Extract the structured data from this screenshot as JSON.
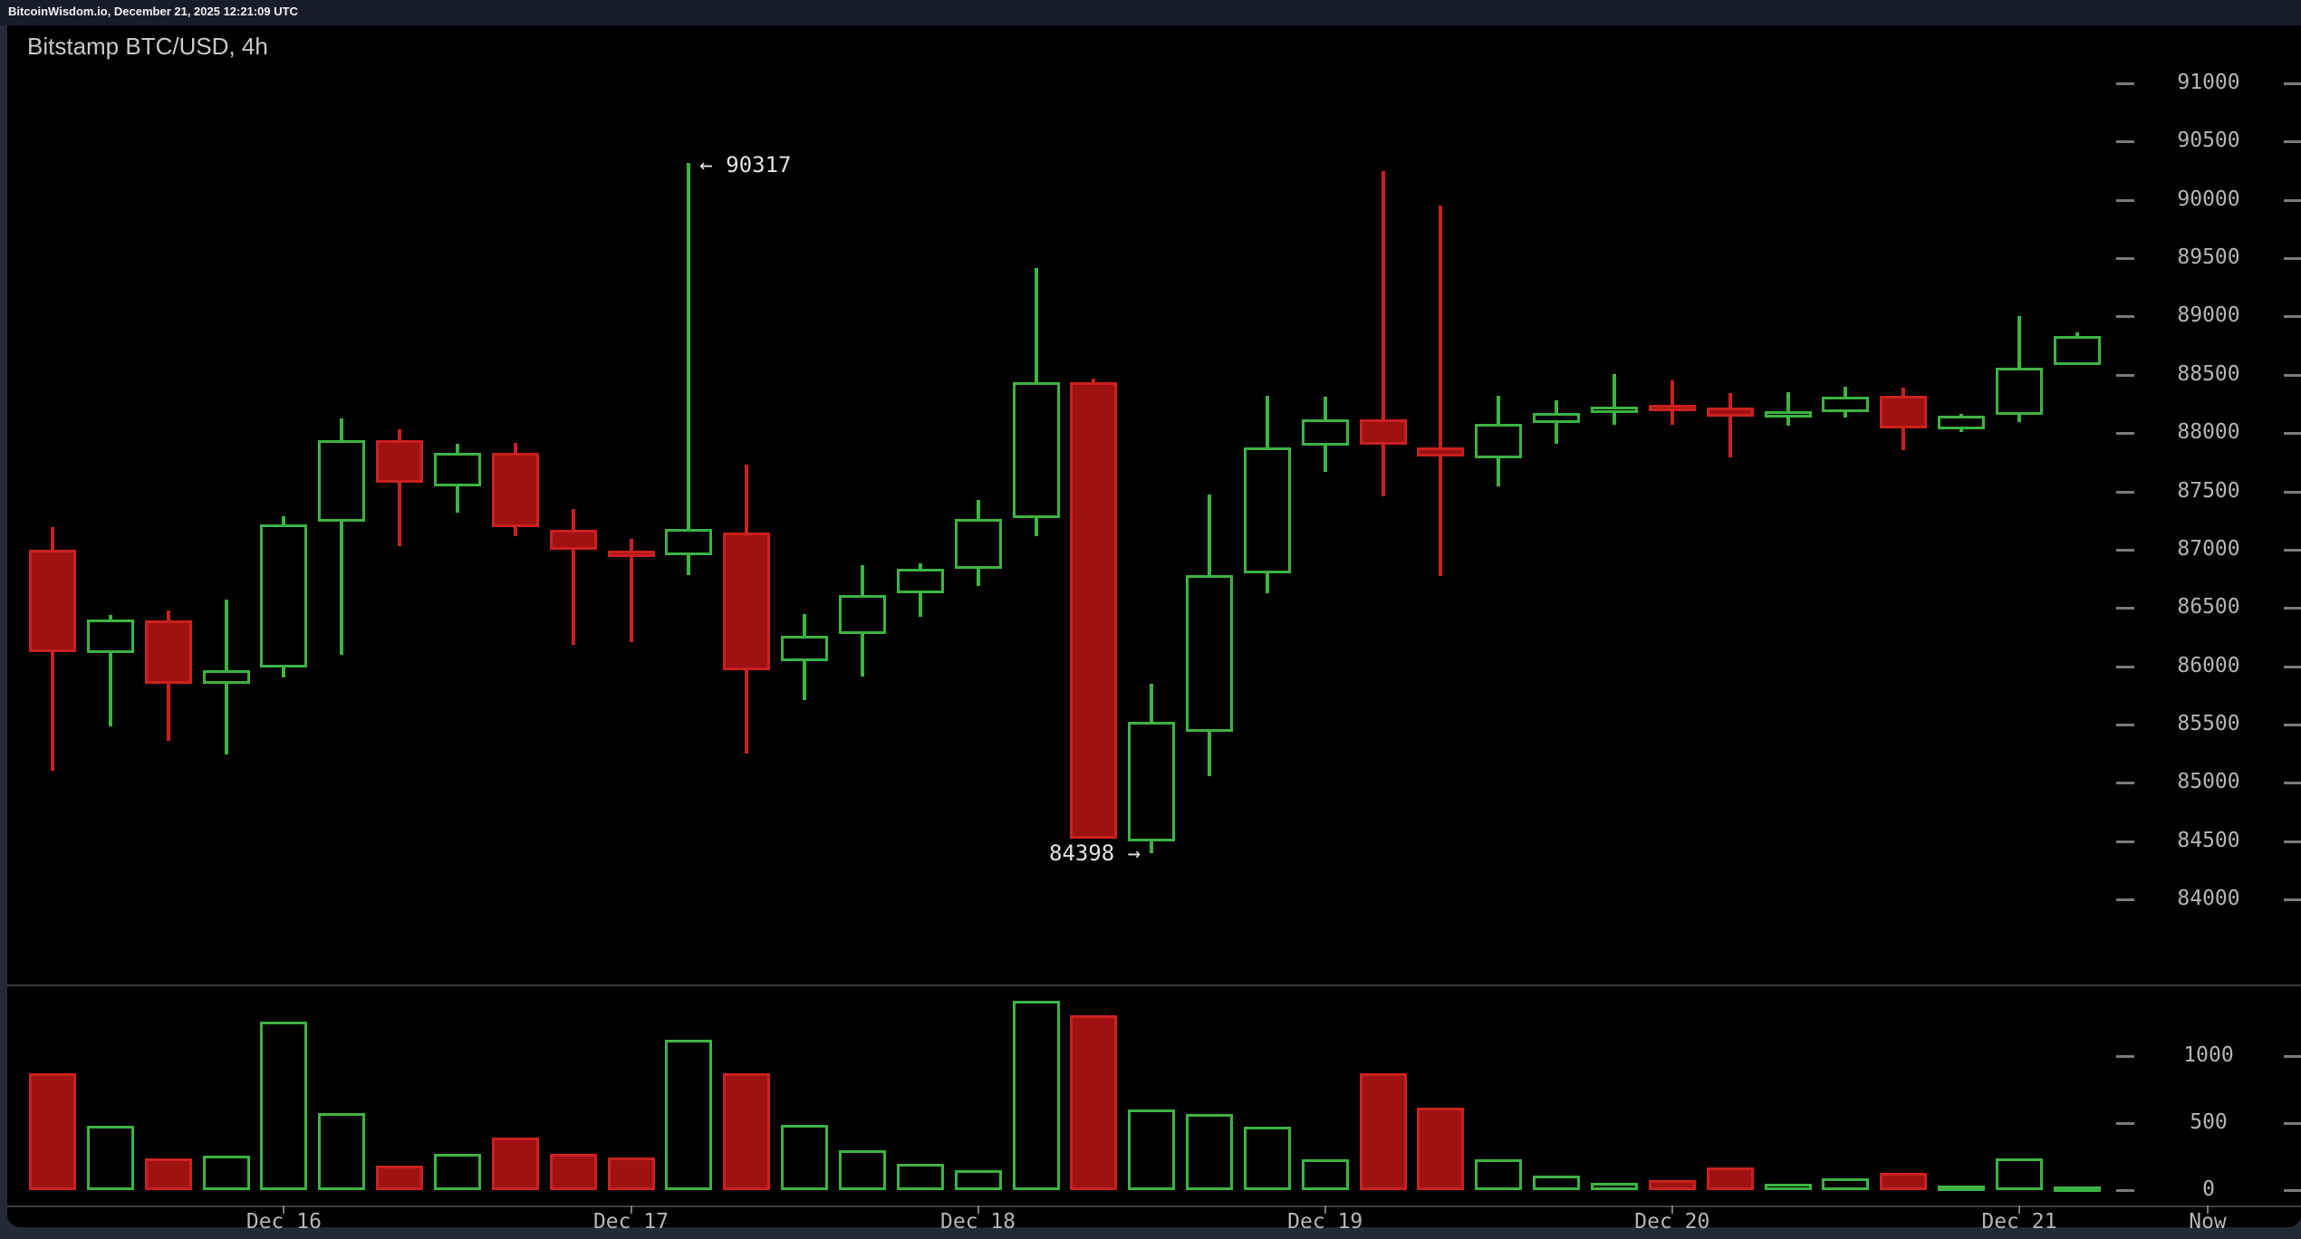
{
  "page": {
    "topbar_text": "BitcoinWisdom.io, December 21, 2025 12:21:09 UTC"
  },
  "chart": {
    "title": "Bitstamp BTC/USD, 4h",
    "high_annotation": "← 90317",
    "low_annotation": "84398 →"
  },
  "colors": {
    "page_bg": "#232936",
    "topbar_bg": "#171c2a",
    "topbar_text": "#f2f2f2",
    "background": "#000000",
    "title_text": "#c9c9c9",
    "axis_text": "#b5b5b5",
    "axis_dash": "#7a7a7a",
    "divider": "#3f3f3f",
    "annotation_text": "#e2e2e2",
    "up": "#3db342",
    "down_fill": "#9e1212",
    "down_stroke": "#cb2020"
  },
  "chart_data": {
    "type": "candlestick",
    "title": "Bitstamp BTC/USD, 4h",
    "exchange": "Bitstamp",
    "pair": "BTC/USD",
    "interval": "4h",
    "legend_position": "none",
    "grid": false,
    "price_axis": {
      "ticks": [
        91000,
        90500,
        90000,
        89500,
        89000,
        88500,
        88000,
        87500,
        87000,
        86500,
        86000,
        85500,
        85000,
        84500,
        84000
      ],
      "ylim": [
        84000,
        91000
      ],
      "side": "right"
    },
    "volume_axis": {
      "ticks": [
        1000,
        500,
        0
      ],
      "ylim": [
        0,
        1500
      ],
      "side": "right"
    },
    "x_axis": {
      "tick_labels": [
        "Dec 16",
        "Dec 17",
        "Dec 18",
        "Dec 19",
        "Dec 20",
        "Dec 21",
        "Now"
      ]
    },
    "window_high": 90317,
    "window_low": 84398,
    "candle_format": [
      "open",
      "high",
      "low",
      "close",
      "volume"
    ],
    "high_annotation_candle_index": 11,
    "low_annotation_candle_index": 19,
    "candles": [
      [
        87000,
        87190,
        85100,
        86120,
        870
      ],
      [
        86110,
        86440,
        85480,
        86400,
        480
      ],
      [
        86390,
        86480,
        85360,
        85850,
        236
      ],
      [
        85850,
        86570,
        85240,
        85965,
        257
      ],
      [
        85990,
        87290,
        85900,
        87215,
        1260
      ],
      [
        87240,
        88125,
        86100,
        87940,
        575
      ],
      [
        87940,
        88030,
        87030,
        87570,
        181
      ],
      [
        87540,
        87910,
        87320,
        87830,
        268
      ],
      [
        87830,
        87915,
        87115,
        87190,
        389
      ],
      [
        87170,
        87350,
        86180,
        87000,
        268
      ],
      [
        86990,
        87090,
        86210,
        86950,
        243
      ],
      [
        86950,
        90317,
        86780,
        87180,
        1122
      ],
      [
        87150,
        87730,
        85250,
        85965,
        872
      ],
      [
        86040,
        86450,
        85710,
        86260,
        487
      ],
      [
        86280,
        86870,
        85910,
        86610,
        297
      ],
      [
        86625,
        86880,
        86420,
        86835,
        196
      ],
      [
        86835,
        87430,
        86690,
        87260,
        149
      ],
      [
        87270,
        89415,
        87115,
        88440,
        1413
      ],
      [
        88440,
        88470,
        84520,
        84520,
        1305
      ],
      [
        84500,
        85850,
        84398,
        85520,
        602
      ],
      [
        85440,
        87470,
        85060,
        86780,
        568
      ],
      [
        86800,
        88320,
        86625,
        87880,
        473
      ],
      [
        87890,
        88310,
        87670,
        88120,
        230
      ],
      [
        88120,
        90250,
        87460,
        87900,
        872
      ],
      [
        87880,
        89950,
        86770,
        87800,
        615
      ],
      [
        87780,
        88320,
        87540,
        88080,
        230
      ],
      [
        88090,
        88280,
        87910,
        88170,
        108
      ],
      [
        88170,
        88510,
        88070,
        88230,
        54
      ],
      [
        88240,
        88450,
        88070,
        88230,
        74
      ],
      [
        88220,
        88340,
        87790,
        88140,
        169
      ],
      [
        88150,
        88350,
        88060,
        88190,
        45
      ],
      [
        88180,
        88400,
        88130,
        88310,
        88
      ],
      [
        88320,
        88390,
        87850,
        88040,
        128
      ],
      [
        88030,
        88165,
        88010,
        88150,
        34
      ],
      [
        88160,
        89000,
        88090,
        88560,
        236
      ],
      [
        88580,
        88860,
        88580,
        88830,
        10
      ]
    ]
  }
}
